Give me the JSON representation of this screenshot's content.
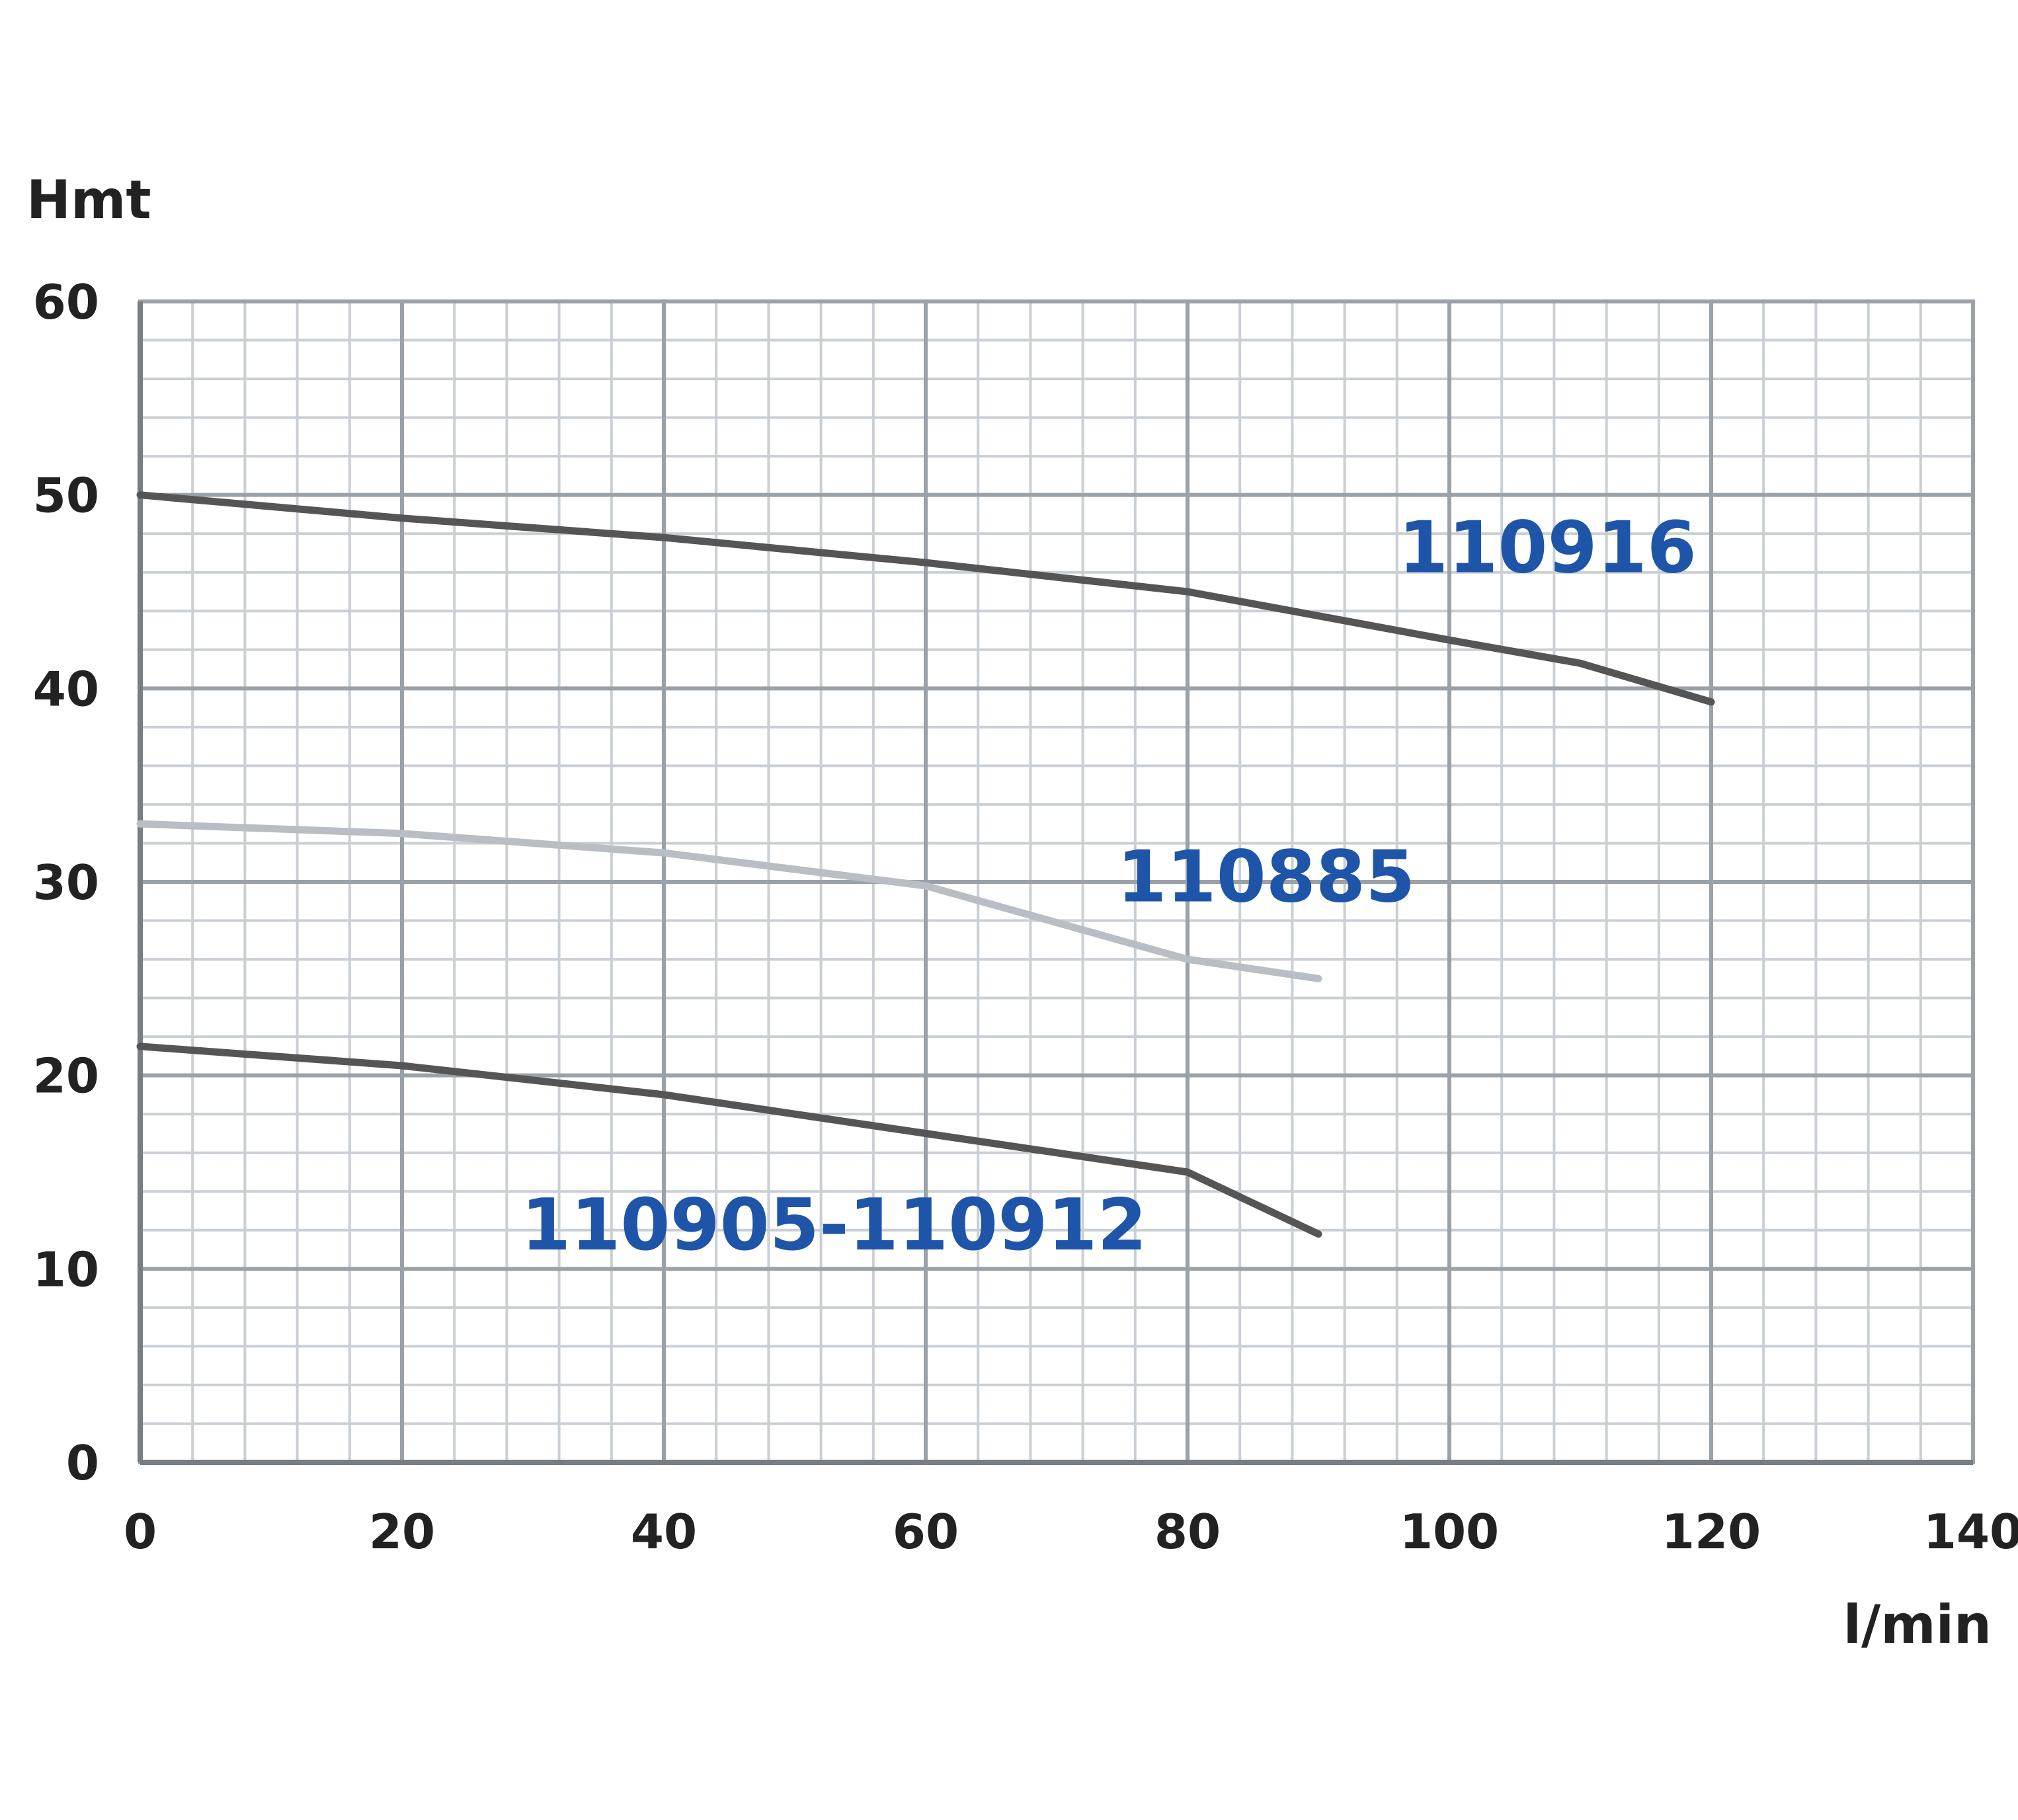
{
  "chart_data": {
    "type": "line",
    "title": "",
    "ylabel": "Hmt",
    "xlabel": "l/min",
    "xlim": [
      0,
      140
    ],
    "ylim": [
      0,
      60
    ],
    "x_ticks": [
      0,
      20,
      40,
      60,
      80,
      100,
      120,
      140
    ],
    "y_ticks": [
      0,
      10,
      20,
      30,
      40,
      50,
      60
    ],
    "x_tick_labels": [
      "0",
      "20",
      "40",
      "60",
      "80",
      "100",
      "120",
      "140"
    ],
    "y_tick_labels": [
      "0",
      "10",
      "20",
      "30",
      "40",
      "50",
      "60"
    ],
    "grid": true,
    "legend": "none",
    "series": [
      {
        "name": "110916",
        "color": "#555555",
        "points": [
          [
            0,
            50
          ],
          [
            20,
            48.8
          ],
          [
            40,
            47.8
          ],
          [
            60,
            46.5
          ],
          [
            80,
            45
          ],
          [
            100,
            42.5
          ],
          [
            110,
            41.3
          ],
          [
            120,
            39.3
          ]
        ]
      },
      {
        "name": "110885",
        "color": "#b8bec4",
        "points": [
          [
            0,
            33
          ],
          [
            20,
            32.5
          ],
          [
            40,
            31.5
          ],
          [
            60,
            29.8
          ],
          [
            80,
            26
          ],
          [
            90,
            25
          ]
        ]
      },
      {
        "name": "110905-110912",
        "color": "#555555",
        "points": [
          [
            0,
            21.5
          ],
          [
            20,
            20.5
          ],
          [
            40,
            19
          ],
          [
            60,
            17
          ],
          [
            80,
            15
          ],
          [
            90,
            11.8
          ]
        ]
      }
    ],
    "annotations": [
      {
        "text": "110916",
        "x": 107.5,
        "y": 46
      },
      {
        "text": "110885",
        "x": 86,
        "y": 29
      },
      {
        "text": "110905-110912",
        "x": 53,
        "y": 11
      }
    ]
  }
}
